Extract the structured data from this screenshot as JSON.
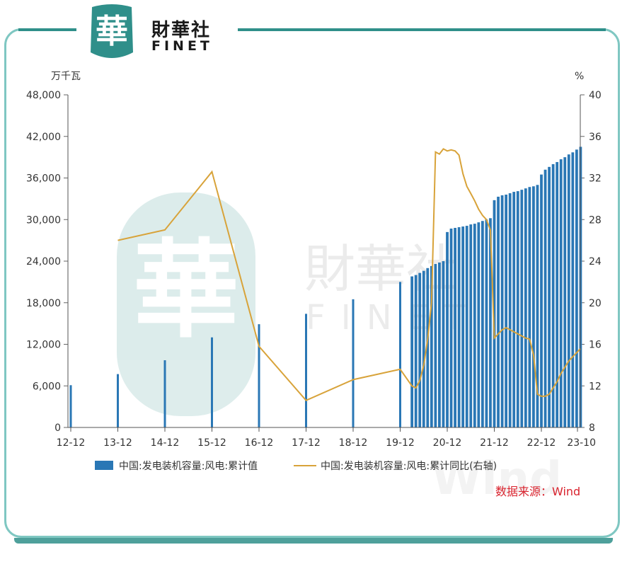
{
  "logo": {
    "seal_char": "華",
    "name_cn": "財華社",
    "name_en": "FINET"
  },
  "watermark": {
    "cn": "財華社",
    "en": "FINET",
    "wind": "Wind"
  },
  "source": "数据来源：Wind",
  "colors": {
    "bar": "#2a77b5",
    "line": "#d8a33a",
    "frame": "#7fc7c2",
    "accent": "#2f8f8a",
    "source": "#d9232e"
  },
  "chart_data": {
    "type": "bar",
    "y_left_unit": "万千瓦",
    "y_right_unit": "%",
    "y_left_ticks": [
      "48,000",
      "42,000",
      "36,000",
      "30,000",
      "24,000",
      "18,000",
      "12,000",
      "6,000",
      "0"
    ],
    "y_right_ticks": [
      "40",
      "36",
      "32",
      "28",
      "24",
      "20",
      "16",
      "12",
      "8"
    ],
    "ylim_left": [
      0,
      48000
    ],
    "ylim_right": [
      8,
      40
    ],
    "x_tick_labels": [
      "12-12",
      "13-12",
      "14-12",
      "15-12",
      "16-12",
      "17-12",
      "18-12",
      "19-12",
      "20-12",
      "21-12",
      "22-12",
      "23-10"
    ],
    "x": [
      "12-12",
      "13-12",
      "14-12",
      "15-12",
      "16-12",
      "17-12",
      "18-12",
      "19-12",
      "20-03",
      "20-04",
      "20-05",
      "20-06",
      "20-07",
      "20-08",
      "20-09",
      "20-10",
      "20-11",
      "20-12",
      "21-01",
      "21-02",
      "21-03",
      "21-04",
      "21-05",
      "21-06",
      "21-07",
      "21-08",
      "21-09",
      "21-10",
      "21-11",
      "21-12",
      "22-01",
      "22-02",
      "22-03",
      "22-04",
      "22-05",
      "22-06",
      "22-07",
      "22-08",
      "22-09",
      "22-10",
      "22-11",
      "22-12",
      "23-01",
      "23-02",
      "23-03",
      "23-04",
      "23-05",
      "23-06",
      "23-07",
      "23-08",
      "23-09",
      "23-10"
    ],
    "series": [
      {
        "name": "中国:发电装机容量:风电:累计值",
        "type": "bar",
        "axis": "left",
        "values": [
          6100,
          7700,
          9700,
          13000,
          14900,
          16400,
          18500,
          21000,
          21800,
          22000,
          22300,
          22600,
          23000,
          23300,
          23600,
          23800,
          24000,
          28200,
          28700,
          28800,
          28900,
          29000,
          29100,
          29300,
          29400,
          29600,
          29800,
          30000,
          30200,
          32800,
          33300,
          33500,
          33600,
          33800,
          34000,
          34100,
          34300,
          34500,
          34700,
          34800,
          35000,
          36500,
          37200,
          37600,
          38000,
          38300,
          38700,
          39000,
          39400,
          39700,
          40100,
          40500
        ]
      },
      {
        "name": "中国:发电装机容量:风电:累计同比(右轴)",
        "type": "line",
        "axis": "right",
        "values": [
          null,
          26.0,
          27.0,
          32.6,
          15.8,
          10.6,
          12.6,
          13.6,
          12.0,
          11.8,
          12.5,
          14.0,
          16.5,
          20.0,
          34.5,
          34.3,
          34.8,
          34.6,
          34.7,
          34.6,
          34.2,
          32.4,
          31.2,
          30.5,
          29.8,
          29.0,
          28.4,
          28.0,
          27.0,
          16.6,
          17.0,
          17.4,
          17.6,
          17.4,
          17.2,
          17.0,
          16.8,
          16.6,
          16.5,
          15.0,
          11.2,
          11.0,
          11.0,
          11.2,
          11.8,
          12.4,
          13.2,
          13.8,
          14.4,
          14.8,
          15.2,
          15.6
        ]
      }
    ]
  }
}
